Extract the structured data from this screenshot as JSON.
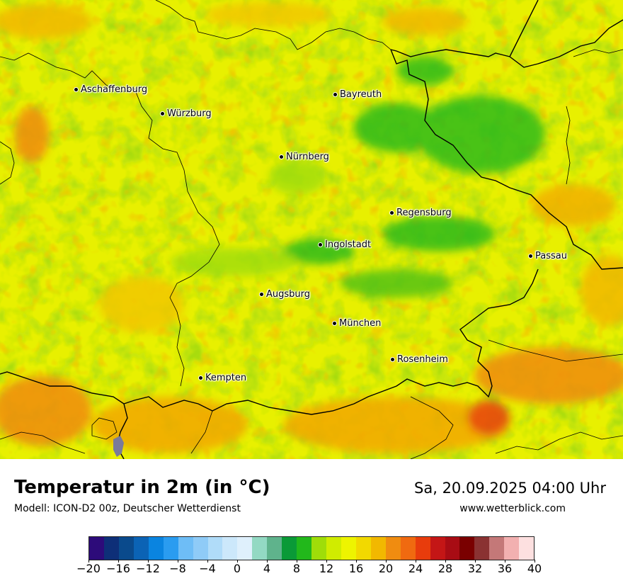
{
  "title": "Temperatur in 2m (in °C)",
  "model": "Modell: ICON-D2 00z, Deutscher Wetterdienst",
  "datetime": "Sa, 20.09.2025 04:00 Uhr",
  "website": "www.wetterblick.com",
  "cities": [
    {
      "name": "Aschaffenburg"
    },
    {
      "name": "Würzburg"
    },
    {
      "name": "Bayreuth"
    },
    {
      "name": "Nürnberg"
    },
    {
      "name": "Regensburg"
    },
    {
      "name": "Ingolstadt"
    },
    {
      "name": "Passau"
    },
    {
      "name": "Augsburg"
    },
    {
      "name": "München"
    },
    {
      "name": "Rosenheim"
    },
    {
      "name": "Kempten"
    }
  ],
  "legend": {
    "colors": [
      "#2d0b7a",
      "#0e2f78",
      "#0a4a8c",
      "#0b63b5",
      "#0a84e0",
      "#2a9cf0",
      "#6ebdf6",
      "#8fcbf7",
      "#b0dcf9",
      "#cce8fb",
      "#dff0fc",
      "#93d9c3",
      "#5fb38c",
      "#0a9a37",
      "#22b81b",
      "#9fdd09",
      "#d0ec00",
      "#eef400",
      "#f2d900",
      "#f2b800",
      "#f08c10",
      "#f06a10",
      "#e83c0c",
      "#c41616",
      "#a80c14",
      "#7a0000",
      "#8a3232",
      "#c47878",
      "#f2b0b0",
      "#fde0e0"
    ],
    "ticks": [
      "−20",
      "−16",
      "−12",
      "−8",
      "−4",
      "0",
      "4",
      "8",
      "12",
      "16",
      "20",
      "24",
      "28",
      "32",
      "36",
      "40"
    ],
    "min": -20,
    "max": 40
  }
}
